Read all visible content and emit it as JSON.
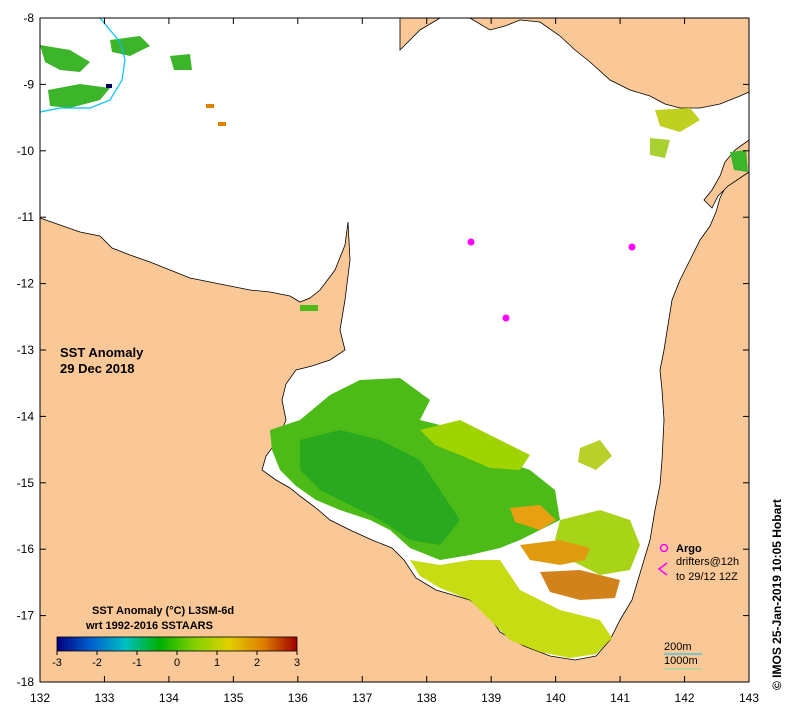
{
  "map": {
    "title_line1": "SST Anomaly",
    "title_line2": "29 Dec 2018",
    "land_color": "#f9c896",
    "no_data_color": "#ffffff",
    "x_ticks": [
      "132",
      "133",
      "134",
      "135",
      "136",
      "137",
      "138",
      "139",
      "140",
      "141",
      "142",
      "143"
    ],
    "y_ticks": [
      "-8",
      "-9",
      "-10",
      "-11",
      "-12",
      "-13",
      "-14",
      "-15",
      "-16",
      "-17",
      "-18"
    ]
  },
  "colorbar": {
    "title_line1": "SST Anomaly (°C) L3SM-6d",
    "title_line2": "wrt 1992-2016 SSTAARS",
    "tick_labels": [
      "-3",
      "-2",
      "-1",
      "0",
      "1",
      "2",
      "3"
    ],
    "stops": [
      "#00007f",
      "#0060d0",
      "#00c0c0",
      "#00b000",
      "#80d000",
      "#e0d000",
      "#e08000",
      "#a00000"
    ]
  },
  "legend": {
    "argo_label": "Argo",
    "drifters_line1": "drifters@12h",
    "drifters_line2": "to 29/12 12Z",
    "depth_200": "200m",
    "depth_1000": "1000m",
    "argo_color": "#ff00ff",
    "depth_200_color": "#00c0ff",
    "depth_1000_color": "#80e0a0"
  },
  "credit": "© IMOS 25-Jan-2019 10:05 Hobart"
}
